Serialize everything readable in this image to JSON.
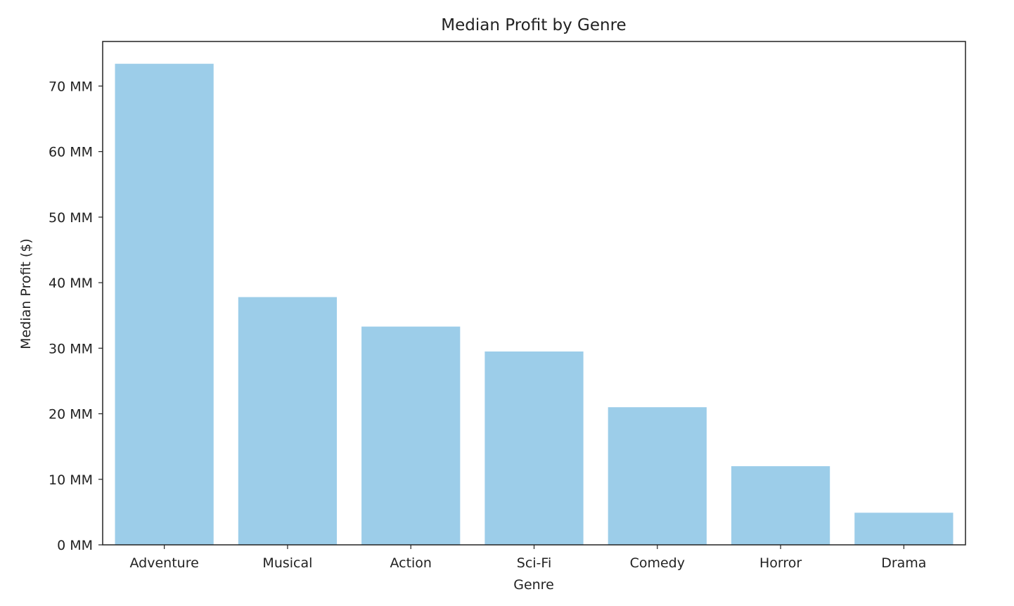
{
  "chart_data": {
    "type": "bar",
    "title": "Median Profit by Genre",
    "xlabel": "Genre",
    "ylabel": "Median Profit ($)",
    "categories": [
      "Adventure",
      "Musical",
      "Action",
      "Sci-Fi",
      "Comedy",
      "Horror",
      "Drama"
    ],
    "values": [
      73.4,
      37.8,
      33.3,
      29.5,
      21.0,
      12.0,
      4.9
    ],
    "value_unit": "MM",
    "ylim": [
      0,
      76.8
    ],
    "yticks": [
      0,
      10,
      20,
      30,
      40,
      50,
      60,
      70
    ],
    "ytick_labels": [
      "0 MM",
      "10 MM",
      "20 MM",
      "30 MM",
      "40 MM",
      "50 MM",
      "60 MM",
      "70 MM"
    ],
    "grid": false,
    "legend": "none",
    "bar_color": "#9ccde9"
  }
}
